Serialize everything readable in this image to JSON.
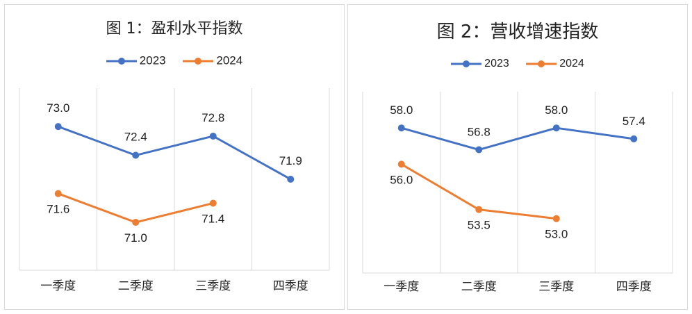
{
  "colors": {
    "series2023": "#4472C4",
    "series2024": "#ED7D31",
    "grid": "#d9d9d9",
    "text": "#222222"
  },
  "chart_data": [
    {
      "type": "line",
      "title": "图 1：盈利水平指数",
      "categories": [
        "一季度",
        "二季度",
        "三季度",
        "四季度"
      ],
      "series": [
        {
          "name": "2023",
          "values": [
            73.0,
            72.4,
            72.8,
            71.9
          ]
        },
        {
          "name": "2024",
          "values": [
            71.6,
            71.0,
            71.4,
            null
          ]
        }
      ],
      "value_labels": {
        "2023": [
          "73.0",
          "72.4",
          "72.8",
          "71.9"
        ],
        "2024": [
          "71.6",
          "71.0",
          "71.4"
        ]
      },
      "legend": "top",
      "ylim": [
        70.0,
        73.8
      ],
      "grid": "vertical"
    },
    {
      "type": "line",
      "title": "图 2：营收增速指数",
      "categories": [
        "一季度",
        "二季度",
        "三季度",
        "四季度"
      ],
      "series": [
        {
          "name": "2023",
          "values": [
            58.0,
            56.8,
            58.0,
            57.4
          ]
        },
        {
          "name": "2024",
          "values": [
            56.0,
            53.5,
            53.0,
            null
          ]
        }
      ],
      "value_labels": {
        "2023": [
          "58.0",
          "56.8",
          "58.0",
          "57.4"
        ],
        "2024": [
          "56.0",
          "53.5",
          "53.0"
        ]
      },
      "legend": "top",
      "ylim": [
        50.0,
        60.0
      ],
      "grid": "vertical"
    }
  ]
}
